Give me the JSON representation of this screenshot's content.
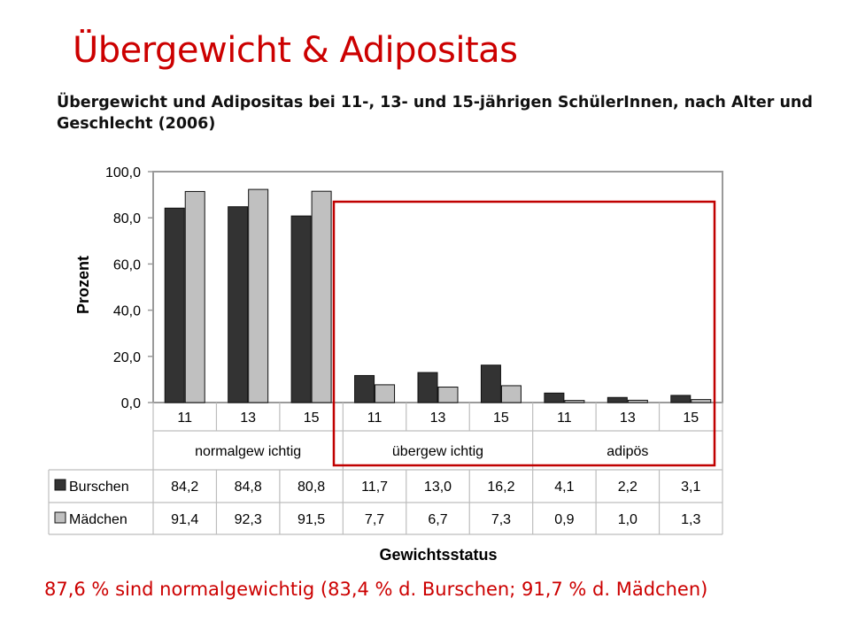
{
  "slide_title": "Übergewicht & Adipositas",
  "footer_text": "87,6 % sind normalgewichtig (83,4 % d. Burschen; 91,7 % d. Mädchen)",
  "colors": {
    "title": "#cc0000",
    "highlight_box": "#c00000",
    "burschen": "#333333",
    "maedchen": "#c0c0c0"
  },
  "chart_data": {
    "type": "bar",
    "title": "Übergewicht und Adipositas bei 11-, 13- und 15-jährigen SchülerInnen, nach Alter und Geschlecht (2006)",
    "xlabel": "Gewichtsstatus",
    "ylabel": "Prozent",
    "ylim": [
      0,
      100
    ],
    "yticks": [
      "0,0",
      "20,0",
      "40,0",
      "60,0",
      "80,0",
      "100,0"
    ],
    "ytick_values": [
      0,
      20,
      40,
      60,
      80,
      100
    ],
    "groups": [
      "normalgew ichtig",
      "übergew ichtig",
      "adipös"
    ],
    "categories": [
      "11",
      "13",
      "15",
      "11",
      "13",
      "15",
      "11",
      "13",
      "15"
    ],
    "series": [
      {
        "name": "Burschen",
        "values": [
          84.2,
          84.8,
          80.8,
          11.7,
          13.0,
          16.2,
          4.1,
          2.2,
          3.1
        ],
        "labels": [
          "84,2",
          "84,8",
          "80,8",
          "11,7",
          "13,0",
          "16,2",
          "4,1",
          "2,2",
          "3,1"
        ]
      },
      {
        "name": "Mädchen",
        "values": [
          91.4,
          92.3,
          91.5,
          7.7,
          6.7,
          7.3,
          0.9,
          1.0,
          1.3
        ],
        "labels": [
          "91,4",
          "92,3",
          "91,5",
          "7,7",
          "6,7",
          "7,3",
          "0,9",
          "1,0",
          "1,3"
        ]
      }
    ],
    "grid": false,
    "legend": "data-table"
  }
}
